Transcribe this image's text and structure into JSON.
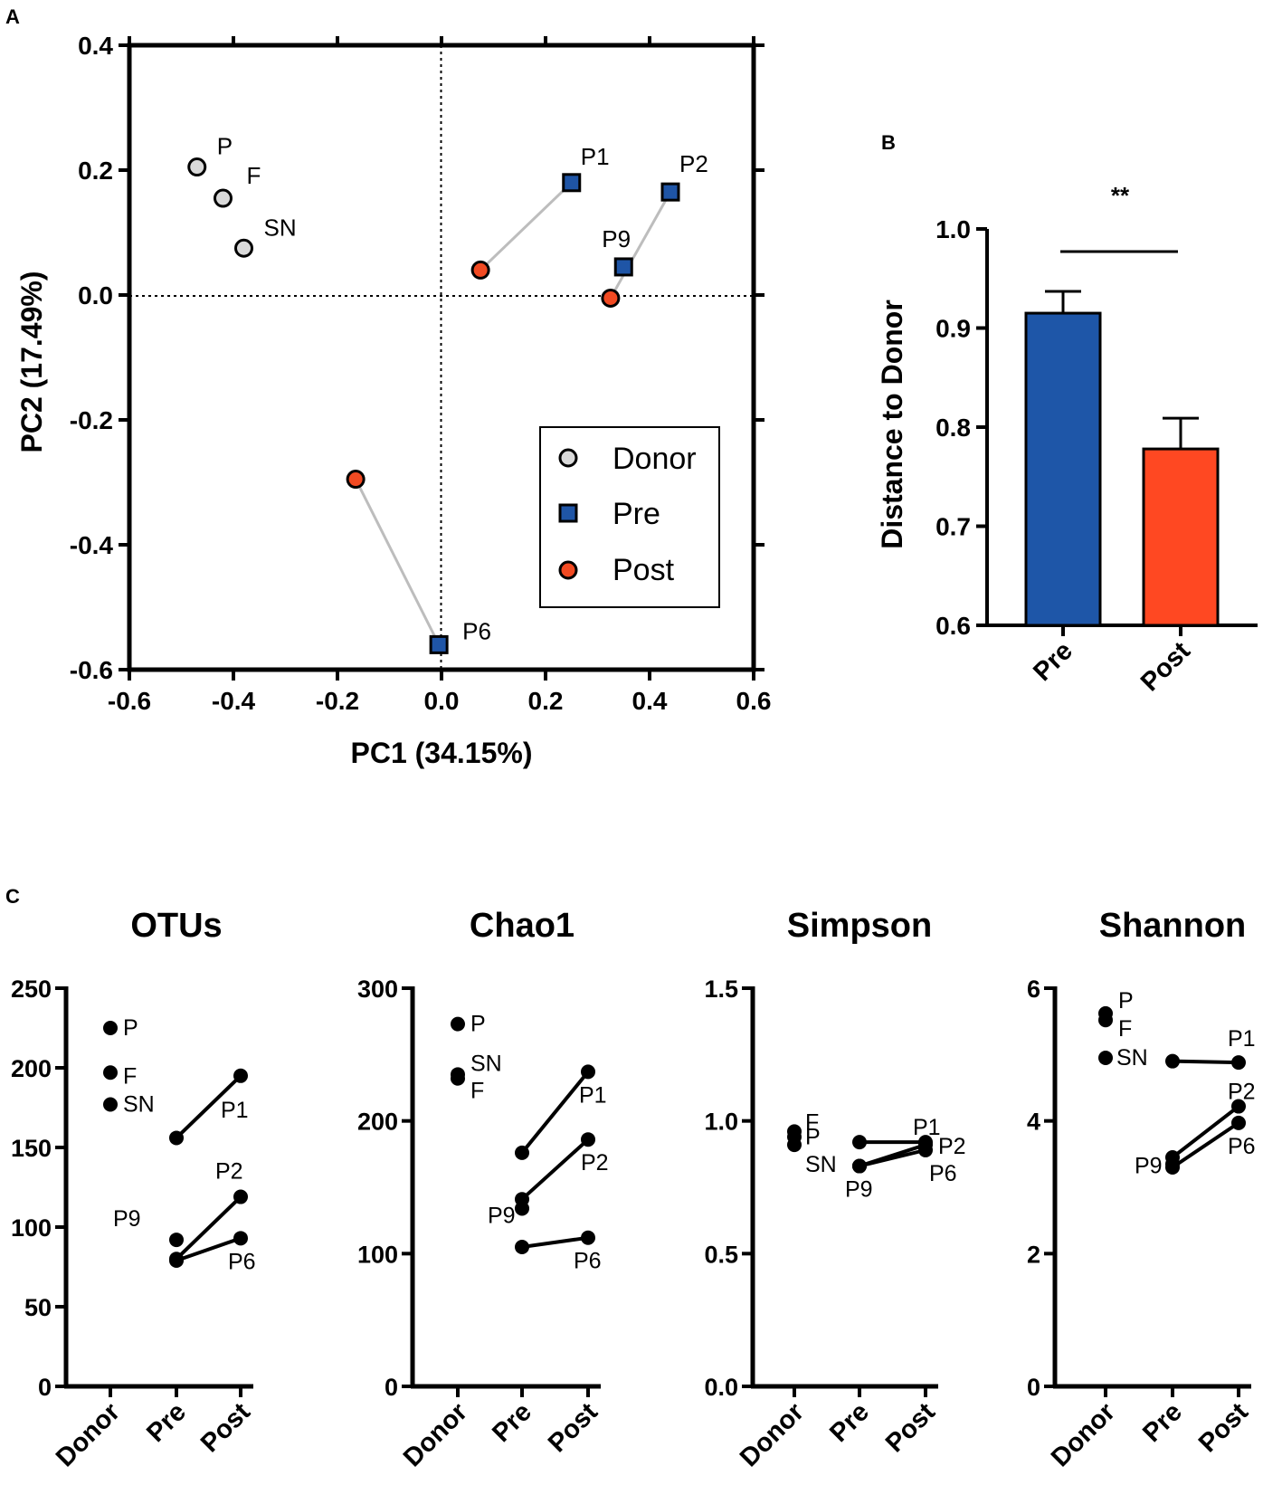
{
  "panels": {
    "A": "A",
    "B": "B",
    "C": "C"
  },
  "colors": {
    "donor": "#d9d9d9",
    "pre": "#1f55a6",
    "post": "#f24a22",
    "bar_pre": "#1e56a8",
    "bar_post": "#ff4822",
    "line": "#bdbdbd"
  },
  "chart_data": [
    {
      "id": "pcoa",
      "type": "scatter",
      "xlabel": "PC1 (34.15%)",
      "ylabel": "PC2 (17.49%)",
      "xlim": [
        -0.6,
        0.6
      ],
      "ylim": [
        -0.6,
        0.4
      ],
      "xticks": [
        -0.6,
        -0.4,
        -0.2,
        0.0,
        0.2,
        0.4,
        0.6
      ],
      "xtick_labels": [
        "-0.6",
        "-0.4",
        "-0.2",
        "0.0",
        "0.2",
        "0.4",
        "0.6"
      ],
      "yticks": [
        0.4,
        0.2,
        0.0,
        -0.2,
        -0.4,
        -0.6
      ],
      "ytick_labels": [
        "0.4",
        "0.2",
        "0.0",
        "-0.2",
        "-0.4",
        "-0.6"
      ],
      "legend": [
        "Donor",
        "Pre",
        "Post"
      ],
      "legend_position": "bottom-right",
      "series": [
        {
          "name": "Donor",
          "points": [
            {
              "label": "P",
              "x": -0.47,
              "y": 0.205
            },
            {
              "label": "F",
              "x": -0.42,
              "y": 0.155
            },
            {
              "label": "SN",
              "x": -0.38,
              "y": 0.075
            }
          ]
        },
        {
          "name": "Pre",
          "points": [
            {
              "label": "P1",
              "x": 0.25,
              "y": 0.18
            },
            {
              "label": "P2",
              "x": 0.44,
              "y": 0.165
            },
            {
              "label": "P9",
              "x": 0.35,
              "y": 0.045
            },
            {
              "label": "P6",
              "x": -0.005,
              "y": -0.56
            }
          ]
        },
        {
          "name": "Post",
          "points": [
            {
              "label": "",
              "x": 0.075,
              "y": 0.04
            },
            {
              "label": "",
              "x": 0.325,
              "y": -0.005
            },
            {
              "label": "",
              "x": -0.165,
              "y": -0.295
            }
          ]
        }
      ],
      "pairs": [
        {
          "pre": "P1",
          "post": [
            0.075,
            0.04
          ]
        },
        {
          "pre": "P2",
          "post": [
            0.325,
            -0.005
          ]
        },
        {
          "pre": "P6",
          "post": [
            -0.165,
            -0.295
          ]
        }
      ]
    },
    {
      "id": "distance",
      "type": "bar",
      "ylabel": "Distance to Donor",
      "ylim": [
        0.6,
        1.0
      ],
      "yticks": [
        0.6,
        0.7,
        0.8,
        0.9,
        1.0
      ],
      "ytick_labels": [
        "0.6",
        "0.7",
        "0.8",
        "0.9",
        "1.0"
      ],
      "categories": [
        "Pre",
        "Post"
      ],
      "values": [
        0.915,
        0.778
      ],
      "errors": [
        0.022,
        0.031
      ],
      "significance": "**"
    },
    {
      "id": "otus",
      "type": "line",
      "title": "OTUs",
      "ylim": [
        0,
        250
      ],
      "yticks": [
        0,
        50,
        100,
        150,
        200,
        250
      ],
      "ytick_labels": [
        "0",
        "50",
        "100",
        "150",
        "200",
        "250"
      ],
      "categories": [
        "Donor",
        "Pre",
        "Post"
      ],
      "donor": [
        {
          "label": "P",
          "value": 225
        },
        {
          "label": "F",
          "value": 197
        },
        {
          "label": "SN",
          "value": 177
        }
      ],
      "patients": [
        {
          "label": "P1",
          "pre": 156,
          "post": 195
        },
        {
          "label": "P2",
          "pre": 80,
          "post": 119
        },
        {
          "label": "P6",
          "pre": 79,
          "post": 93
        },
        {
          "label": "P9",
          "pre": 92,
          "post": null
        }
      ]
    },
    {
      "id": "chao1",
      "type": "line",
      "title": "Chao1",
      "ylim": [
        0,
        300
      ],
      "yticks": [
        0,
        100,
        200,
        300
      ],
      "ytick_labels": [
        "0",
        "100",
        "200",
        "300"
      ],
      "categories": [
        "Donor",
        "Pre",
        "Post"
      ],
      "donor": [
        {
          "label": "P",
          "value": 273
        },
        {
          "label": "SN",
          "value": 235
        },
        {
          "label": "F",
          "value": 232
        }
      ],
      "patients": [
        {
          "label": "P1",
          "pre": 176,
          "post": 237
        },
        {
          "label": "P2",
          "pre": 141,
          "post": 186
        },
        {
          "label": "P6",
          "pre": 105,
          "post": 112
        },
        {
          "label": "P9",
          "pre": 134,
          "post": null
        }
      ]
    },
    {
      "id": "simpson",
      "type": "line",
      "title": "Simpson",
      "ylim": [
        0,
        1.5
      ],
      "yticks": [
        0,
        0.5,
        1.0,
        1.5
      ],
      "ytick_labels": [
        "0.0",
        "0.5",
        "1.0",
        "1.5"
      ],
      "categories": [
        "Donor",
        "Pre",
        "Post"
      ],
      "donor": [
        {
          "label": "F",
          "value": 0.96
        },
        {
          "label": "P",
          "value": 0.94
        },
        {
          "label": "SN",
          "value": 0.91
        }
      ],
      "patients": [
        {
          "label": "P1",
          "pre": 0.92,
          "post": 0.92
        },
        {
          "label": "P2",
          "pre": 0.83,
          "post": 0.91
        },
        {
          "label": "P6",
          "pre": 0.83,
          "post": 0.89
        },
        {
          "label": "P9",
          "pre": 0.83,
          "post": null
        }
      ]
    },
    {
      "id": "shannon",
      "type": "line",
      "title": "Shannon",
      "ylim": [
        0,
        6
      ],
      "yticks": [
        0,
        2,
        4,
        6
      ],
      "ytick_labels": [
        "0",
        "2",
        "4",
        "6"
      ],
      "categories": [
        "Donor",
        "Pre",
        "Post"
      ],
      "donor": [
        {
          "label": "P",
          "value": 5.62
        },
        {
          "label": "F",
          "value": 5.52
        },
        {
          "label": "SN",
          "value": 4.95
        }
      ],
      "patients": [
        {
          "label": "P1",
          "pre": 4.9,
          "post": 4.88
        },
        {
          "label": "P2",
          "pre": 3.45,
          "post": 4.22
        },
        {
          "label": "P6",
          "pre": 3.3,
          "post": 3.97
        },
        {
          "label": "P9",
          "pre": 3.35,
          "post": null
        }
      ]
    }
  ]
}
